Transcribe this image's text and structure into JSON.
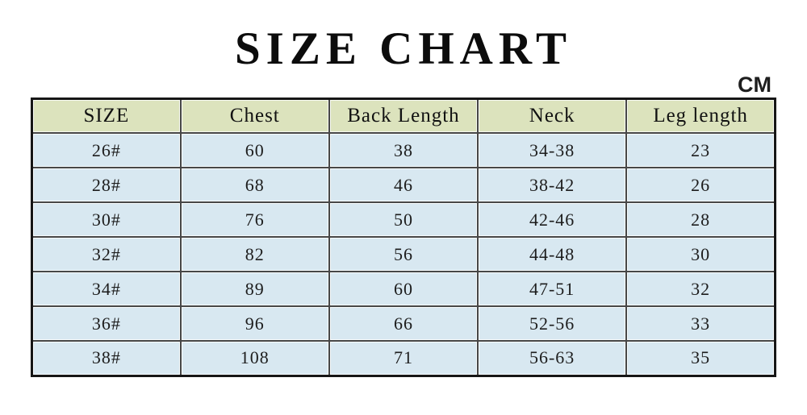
{
  "page": {
    "title": "SIZE CHART",
    "unit_label": "CM"
  },
  "colors": {
    "header_bg": "#dce3bd",
    "row_bg": "#d8e8f1",
    "grid_line": "#474747",
    "outer_border": "#161616",
    "text": "#1b1b1b"
  },
  "table": {
    "columns": [
      "SIZE",
      "Chest",
      "Back Length",
      "Neck",
      "Leg length"
    ],
    "rows": [
      [
        "26#",
        "60",
        "38",
        "34-38",
        "23"
      ],
      [
        "28#",
        "68",
        "46",
        "38-42",
        "26"
      ],
      [
        "30#",
        "76",
        "50",
        "42-46",
        "28"
      ],
      [
        "32#",
        "82",
        "56",
        "44-48",
        "30"
      ],
      [
        "34#",
        "89",
        "60",
        "47-51",
        "32"
      ],
      [
        "36#",
        "96",
        "66",
        "52-56",
        "33"
      ],
      [
        "38#",
        "108",
        "71",
        "56-63",
        "35"
      ]
    ]
  },
  "chart_data": {
    "type": "table",
    "title": "SIZE CHART",
    "unit": "CM",
    "columns": [
      "SIZE",
      "Chest",
      "Back Length",
      "Neck",
      "Leg length"
    ],
    "rows": [
      {
        "size": "26#",
        "chest": 60,
        "back_length": 38,
        "neck": "34-38",
        "leg_length": 23
      },
      {
        "size": "28#",
        "chest": 68,
        "back_length": 46,
        "neck": "38-42",
        "leg_length": 26
      },
      {
        "size": "30#",
        "chest": 76,
        "back_length": 50,
        "neck": "42-46",
        "leg_length": 28
      },
      {
        "size": "32#",
        "chest": 82,
        "back_length": 56,
        "neck": "44-48",
        "leg_length": 30
      },
      {
        "size": "34#",
        "chest": 89,
        "back_length": 60,
        "neck": "47-51",
        "leg_length": 32
      },
      {
        "size": "36#",
        "chest": 96,
        "back_length": 66,
        "neck": "52-56",
        "leg_length": 33
      },
      {
        "size": "38#",
        "chest": 108,
        "back_length": 71,
        "neck": "56-63",
        "leg_length": 35
      }
    ]
  }
}
